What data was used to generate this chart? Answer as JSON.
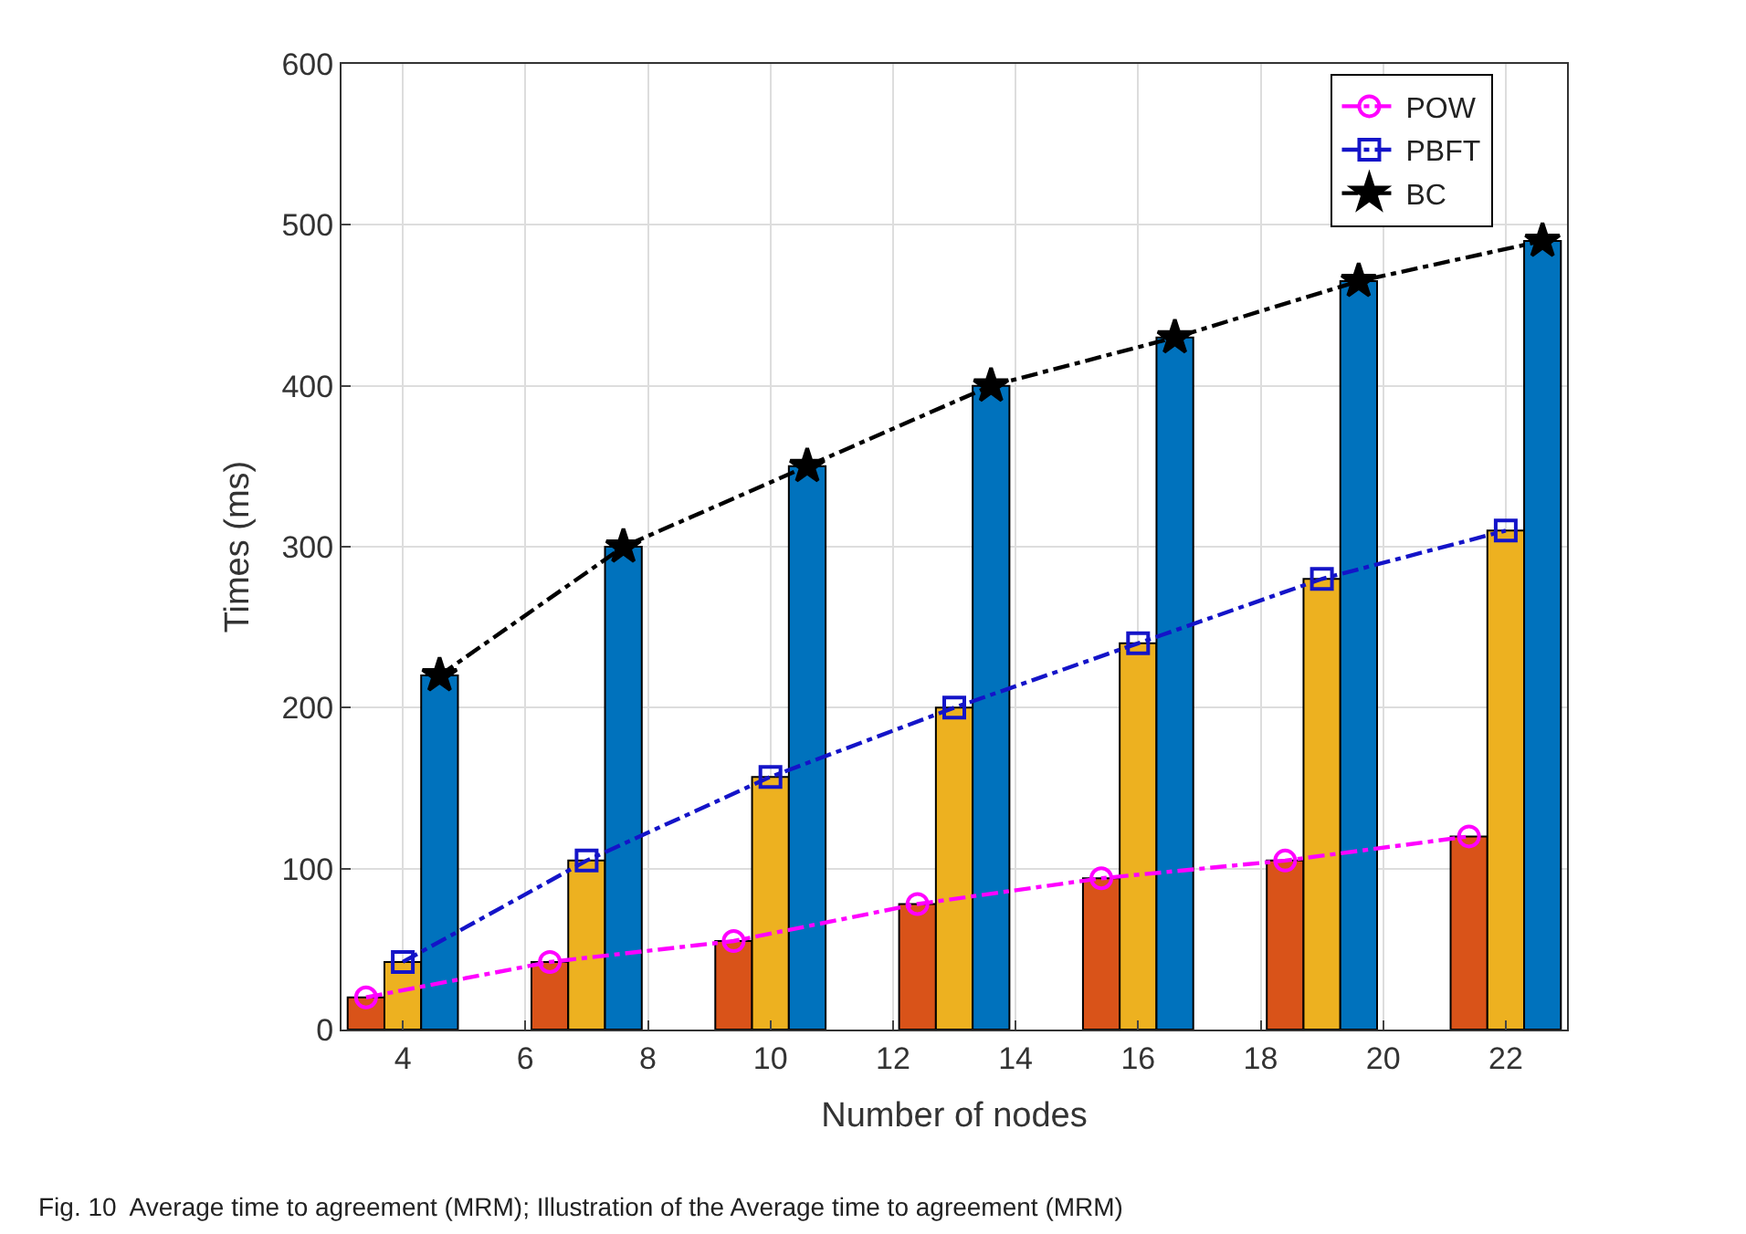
{
  "chart_data": {
    "type": "bar",
    "xlabel": "Number of nodes",
    "ylabel": "Times (ms)",
    "x": [
      4,
      7,
      10,
      13,
      16,
      19,
      22
    ],
    "series": [
      {
        "color": "#d95319",
        "values": [
          20,
          42,
          55,
          78,
          94,
          105,
          120
        ]
      },
      {
        "color": "#edb120",
        "values": [
          42,
          105,
          157,
          200,
          240,
          280,
          310
        ]
      },
      {
        "color": "#0072bd",
        "values": [
          220,
          300,
          350,
          400,
          430,
          465,
          490
        ]
      },
      {
        "type": "line",
        "name": "POW",
        "color": "#ff00ff",
        "marker": "circle",
        "line_style": "dashed",
        "x": [
          3.4,
          6.4,
          9.4,
          12.4,
          15.4,
          18.4,
          21.4
        ],
        "values": [
          20,
          42,
          55,
          78,
          94,
          105,
          120
        ]
      },
      {
        "type": "line",
        "name": "PBFT",
        "color": "#1414c8",
        "marker": "square",
        "line_style": "dashed",
        "x": [
          4,
          7,
          10,
          13,
          16,
          19,
          22
        ],
        "values": [
          42,
          105,
          157,
          200,
          240,
          280,
          310
        ]
      },
      {
        "type": "line",
        "name": "BC",
        "color": "#000000",
        "marker": "star",
        "line_style": "dashed",
        "x": [
          4.6,
          7.6,
          10.6,
          13.6,
          16.6,
          19.6,
          22.6
        ],
        "values": [
          220,
          300,
          350,
          400,
          430,
          465,
          490
        ]
      }
    ],
    "xlim": [
      3,
      23
    ],
    "xticks": [
      4,
      6,
      8,
      10,
      12,
      14,
      16,
      18,
      20,
      22
    ],
    "ylim": [
      0,
      600
    ],
    "yticks": [
      0,
      100,
      200,
      300,
      400,
      500,
      600
    ],
    "grid": true,
    "legend": "top right",
    "annotations": [
      "Fig. 10  Average time to agreement (MRM); Illustration of the Average time to agreement (MRM)"
    ]
  }
}
